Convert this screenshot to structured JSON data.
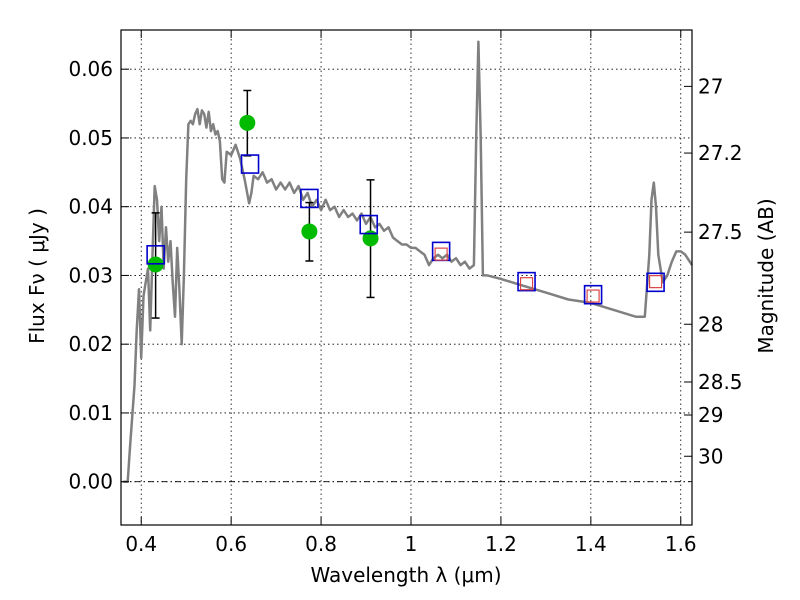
{
  "chart_data": {
    "type": "scatter",
    "xlabel": "Wavelength  λ (μm)",
    "ylabel": "Flux  Fν  ( μJy )",
    "y2label": "Magnitude (AB)",
    "xlim": [
      0.355,
      1.625
    ],
    "ylim": [
      -0.0063,
      0.0657
    ],
    "grid": true,
    "x_ticks": [
      0.4,
      0.6,
      0.8,
      1.0,
      1.2,
      1.4,
      1.6
    ],
    "x_tick_labels": [
      "0.4",
      "0.6",
      "0.8",
      "1",
      "1.2",
      "1.4",
      "1.6"
    ],
    "y_ticks": [
      0.0,
      0.01,
      0.02,
      0.03,
      0.04,
      0.05,
      0.06
    ],
    "y_tick_labels": [
      "0.00",
      "0.01",
      "0.02",
      "0.03",
      "0.04",
      "0.05",
      "0.06"
    ],
    "y2_ticks": [
      {
        "label": "27",
        "flux": 0.0575
      },
      {
        "label": "27.2",
        "flux": 0.0478
      },
      {
        "label": "27.5",
        "flux": 0.0363
      },
      {
        "label": "28",
        "flux": 0.0229
      },
      {
        "label": "28.5",
        "flux": 0.0145
      },
      {
        "label": "29",
        "flux": 0.0097
      },
      {
        "label": "30",
        "flux": 0.0037
      }
    ],
    "colors": {
      "model": "#808080",
      "observed": "#00bb00",
      "model_photometry": "#0000cc",
      "predicted": "#dd4444",
      "errorbar": "#000000",
      "zero_line": "#000000"
    },
    "series": [
      {
        "kind": "line",
        "x": [
          0.36,
          0.37,
          0.375,
          0.385,
          0.39,
          0.395,
          0.4,
          0.405,
          0.41,
          0.415,
          0.42,
          0.425,
          0.43,
          0.435,
          0.44,
          0.445,
          0.45,
          0.455,
          0.46,
          0.465,
          0.47,
          0.475,
          0.48,
          0.485,
          0.49,
          0.495,
          0.5,
          0.505,
          0.51,
          0.515,
          0.52,
          0.525,
          0.53,
          0.535,
          0.54,
          0.545,
          0.55,
          0.555,
          0.56,
          0.565,
          0.57,
          0.575,
          0.58,
          0.585,
          0.59,
          0.6,
          0.61,
          0.62,
          0.63,
          0.64,
          0.645,
          0.65,
          0.66,
          0.67,
          0.68,
          0.69,
          0.7,
          0.71,
          0.72,
          0.73,
          0.74,
          0.75,
          0.76,
          0.77,
          0.78,
          0.79,
          0.8,
          0.81,
          0.82,
          0.83,
          0.84,
          0.85,
          0.86,
          0.87,
          0.88,
          0.89,
          0.9,
          0.91,
          0.92,
          0.93,
          0.94,
          0.95,
          0.96,
          0.97,
          0.98,
          0.99,
          1.0,
          1.01,
          1.02,
          1.03,
          1.04,
          1.05,
          1.06,
          1.07,
          1.08,
          1.09,
          1.1,
          1.11,
          1.12,
          1.13,
          1.14,
          1.145,
          1.15,
          1.155,
          1.16,
          1.17,
          1.2,
          1.25,
          1.3,
          1.35,
          1.4,
          1.45,
          1.5,
          1.52,
          1.53,
          1.535,
          1.54,
          1.545,
          1.55,
          1.56,
          1.57,
          1.58,
          1.59,
          1.6,
          1.61,
          1.625
        ],
        "values": [
          0.0,
          0.0,
          0.005,
          0.014,
          0.022,
          0.028,
          0.018,
          0.027,
          0.029,
          0.031,
          0.022,
          0.033,
          0.043,
          0.041,
          0.035,
          0.04,
          0.031,
          0.037,
          0.032,
          0.035,
          0.029,
          0.024,
          0.034,
          0.028,
          0.02,
          0.03,
          0.044,
          0.052,
          0.0525,
          0.052,
          0.0535,
          0.0542,
          0.052,
          0.054,
          0.0535,
          0.0515,
          0.0538,
          0.051,
          0.052,
          0.0505,
          0.051,
          0.0495,
          0.044,
          0.0435,
          0.048,
          0.0475,
          0.049,
          0.047,
          0.044,
          0.0405,
          0.042,
          0.0445,
          0.044,
          0.045,
          0.0435,
          0.044,
          0.0425,
          0.0435,
          0.0425,
          0.0435,
          0.042,
          0.043,
          0.041,
          0.042,
          0.04,
          0.041,
          0.0395,
          0.041,
          0.0395,
          0.04,
          0.0385,
          0.0395,
          0.0385,
          0.039,
          0.038,
          0.039,
          0.0375,
          0.0385,
          0.037,
          0.0375,
          0.0365,
          0.037,
          0.0355,
          0.035,
          0.0345,
          0.0345,
          0.034,
          0.034,
          0.0335,
          0.033,
          0.0315,
          0.0325,
          0.033,
          0.0325,
          0.033,
          0.032,
          0.0325,
          0.0315,
          0.032,
          0.031,
          0.0315,
          0.05,
          0.064,
          0.05,
          0.03,
          0.03,
          0.0295,
          0.0285,
          0.0275,
          0.0265,
          0.026,
          0.025,
          0.024,
          0.024,
          0.033,
          0.041,
          0.0435,
          0.04,
          0.033,
          0.029,
          0.03,
          0.032,
          0.0335,
          0.0335,
          0.033,
          0.0315
        ]
      },
      {
        "kind": "observed",
        "x": [
          0.432,
          0.636,
          0.774,
          0.91
        ],
        "values": [
          0.0316,
          0.0522,
          0.0364,
          0.0354
        ],
        "err_low": [
          0.0078,
          0.0048,
          0.0043,
          0.0086
        ],
        "err_high": [
          0.0075,
          0.0047,
          0.0042,
          0.0085
        ]
      },
      {
        "kind": "model_photometry",
        "x": [
          0.432,
          0.642,
          0.774,
          0.906,
          1.067,
          1.257,
          1.405,
          1.544
        ],
        "values": [
          0.033,
          0.0462,
          0.0412,
          0.0374,
          0.0335,
          0.0291,
          0.0272,
          0.029
        ]
      },
      {
        "kind": "predicted",
        "x": [
          1.067,
          1.257,
          1.405,
          1.544
        ],
        "values": [
          0.0331,
          0.0288,
          0.027,
          0.0291
        ]
      }
    ]
  }
}
